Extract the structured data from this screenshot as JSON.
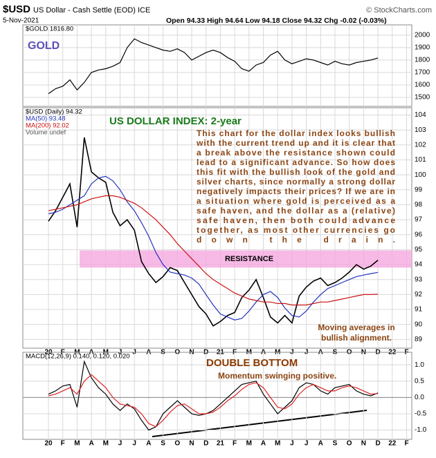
{
  "header": {
    "symbol": "$USD",
    "name": "US Dollar - Cash Settle (EOD) ICE",
    "source": "© StockCharts.com",
    "date": "5-Nov-2021",
    "quote": "Open 94.33  High 94.64  Low 94.18  Close 94.32  Chg -0.02 (-0.03%)"
  },
  "chart_data": {
    "type": "line",
    "grid": true,
    "categories": [
      "20",
      null,
      "F",
      null,
      "M",
      null,
      "A",
      null,
      "M",
      null,
      "J",
      null,
      "J",
      null,
      "A",
      null,
      "S",
      null,
      "O",
      null,
      "N",
      null,
      "D",
      null,
      "21",
      null,
      "F",
      null,
      "M",
      null,
      "A",
      null,
      "M",
      null,
      "J",
      null,
      "J",
      null,
      "A",
      null,
      "S",
      null,
      "O",
      null,
      "N",
      null,
      "D",
      null,
      "22",
      null,
      "F",
      null
    ],
    "panels": [
      {
        "legend": [
          "$GOLD 1816.80"
        ],
        "label": "GOLD",
        "ylim": [
          1450,
          2060
        ],
        "yticks": [
          1500,
          1600,
          1700,
          1800,
          1900,
          2000
        ],
        "series": [
          {
            "name": "$GOLD",
            "color": "#000000",
            "values": [
              1530,
              1570,
              1590,
              1640,
              1560,
              1620,
              1700,
              1720,
              1730,
              1750,
              1780,
              1900,
              1970,
              1940,
              1920,
              1900,
              1880,
              1870,
              1890,
              1860,
              1800,
              1830,
              1860,
              1880,
              1860,
              1820,
              1790,
              1730,
              1710,
              1760,
              1780,
              1840,
              1870,
              1800,
              1770,
              1790,
              1810,
              1800,
              1780,
              1760,
              1790,
              1770,
              1760,
              1780,
              1790,
              1800,
              1816.8,
              null,
              null,
              null,
              null,
              null
            ]
          }
        ]
      },
      {
        "legend": [
          "$USD (Daily) 94.32",
          "MA(50) 93.48",
          "MA(200) 92.02",
          "Volume undef"
        ],
        "label": "US DOLLAR INDEX: 2-year",
        "ylim": [
          88.6,
          104.3
        ],
        "yticks": [
          89,
          90,
          91,
          92,
          93,
          94,
          95,
          96,
          97,
          98,
          99,
          100,
          101,
          102,
          103,
          104
        ],
        "resistance": [
          93.8,
          94.95
        ],
        "resistance_label": "RESISTANCE",
        "note": [
          "This chart for the dollar index looks bullish",
          "with the current trend up and it is clear that",
          "a break above the resistance shown could",
          "lead to a significant advance. So how does",
          "this fit with the bullish look of the gold and",
          "silver charts, since normally a strong dollar",
          "negatively impacts their prices? If we are in",
          "a situation where gold is perceived as a",
          "safe haven, and the dollar as a (relative)",
          "safe haven, then both could advance",
          "together, as most other currencies go",
          "down the drain."
        ],
        "note2": [
          "Moving averages in",
          "bullish alignment."
        ],
        "series": [
          {
            "name": "$USD",
            "color": "#000000",
            "values": [
              96.9,
              97.6,
              98.5,
              99.4,
              96.5,
              102.5,
              100.2,
              99.8,
              99.5,
              97.5,
              96.6,
              97.0,
              96.3,
              94.2,
              93.4,
              92.8,
              93.2,
              93.8,
              93.6,
              92.8,
              92.0,
              91.2,
              90.7,
              89.9,
              90.2,
              90.6,
              90.8,
              91.8,
              92.3,
              93.0,
              91.8,
              90.5,
              90.1,
              90.6,
              90.1,
              91.9,
              92.5,
              92.9,
              93.1,
              92.6,
              92.8,
              93.1,
              93.5,
              94.0,
              93.7,
              93.9,
              94.3,
              null,
              null,
              null,
              null,
              null
            ]
          },
          {
            "name": "MA(50)",
            "color": "#2233bb",
            "values": [
              97.4,
              97.5,
              97.7,
              98.0,
              98.3,
              98.6,
              99.4,
              99.8,
              99.9,
              99.6,
              99.0,
              98.2,
              97.6,
              96.8,
              95.9,
              94.8,
              94.0,
              93.5,
              93.4,
              93.3,
              93.1,
              92.7,
              92.0,
              91.3,
              90.7,
              90.5,
              90.3,
              90.4,
              90.9,
              91.5,
              92.0,
              92.2,
              91.8,
              91.1,
              90.6,
              90.5,
              90.9,
              91.5,
              92.0,
              92.4,
              92.6,
              92.8,
              93.0,
              93.2,
              93.3,
              93.4,
              93.48,
              null,
              null,
              null,
              null,
              null
            ]
          },
          {
            "name": "MA(200)",
            "color": "#cc1111",
            "values": [
              97.6,
              97.7,
              97.8,
              97.9,
              98.0,
              98.2,
              98.4,
              98.5,
              98.6,
              98.6,
              98.5,
              98.3,
              98.1,
              97.8,
              97.4,
              97.0,
              96.5,
              96.0,
              95.4,
              94.9,
              94.4,
              93.9,
              93.4,
              93.0,
              92.7,
              92.4,
              92.1,
              91.9,
              91.7,
              91.6,
              91.5,
              91.5,
              91.4,
              91.4,
              91.3,
              91.3,
              91.3,
              91.4,
              91.5,
              91.5,
              91.6,
              91.7,
              91.8,
              91.9,
              92.0,
              92.0,
              92.02,
              null,
              null,
              null,
              null,
              null
            ]
          }
        ]
      },
      {
        "legend": [
          "MACD(12,26,9) 0.140, 0.120, 0.020"
        ],
        "label": "DOUBLE BOTTOM",
        "note": "Momentum swinging positive.",
        "ylim": [
          -1.2,
          1.3
        ],
        "yticks": [
          {
            "value": -1,
            "label": "-1.0"
          },
          {
            "value": -0.5,
            "label": "-0.5"
          },
          {
            "value": 0,
            "label": "0.0"
          },
          {
            "value": 0.5,
            "label": "0.5"
          },
          {
            "value": 1,
            "label": "1.0"
          }
        ],
        "series": [
          {
            "name": "MACD",
            "color": "#000000",
            "values": [
              0.1,
              0.2,
              0.35,
              0.4,
              -0.3,
              1.1,
              0.6,
              0.3,
              0.1,
              -0.2,
              -0.4,
              -0.2,
              -0.35,
              -0.7,
              -1.0,
              -0.9,
              -0.5,
              -0.3,
              -0.1,
              -0.3,
              -0.5,
              -0.55,
              -0.5,
              -0.4,
              -0.2,
              0.0,
              0.2,
              0.4,
              0.45,
              0.5,
              0.1,
              -0.2,
              -0.5,
              -0.3,
              -0.1,
              0.3,
              0.45,
              0.4,
              0.2,
              0.1,
              0.3,
              0.35,
              0.4,
              0.2,
              0.1,
              0.05,
              0.14,
              null,
              null,
              null,
              null,
              null
            ]
          },
          {
            "name": "Signal",
            "color": "#dd2222",
            "values": [
              0.05,
              0.1,
              0.2,
              0.3,
              0.1,
              0.5,
              0.7,
              0.5,
              0.3,
              0.0,
              -0.2,
              -0.25,
              -0.3,
              -0.5,
              -0.8,
              -0.9,
              -0.7,
              -0.45,
              -0.25,
              -0.2,
              -0.35,
              -0.5,
              -0.5,
              -0.45,
              -0.3,
              -0.1,
              0.05,
              0.25,
              0.4,
              0.45,
              0.3,
              0.0,
              -0.3,
              -0.35,
              -0.2,
              0.1,
              0.3,
              0.4,
              0.3,
              0.2,
              0.2,
              0.3,
              0.35,
              0.3,
              0.2,
              0.1,
              0.12,
              null,
              null,
              null,
              null,
              null
            ]
          }
        ]
      }
    ]
  }
}
